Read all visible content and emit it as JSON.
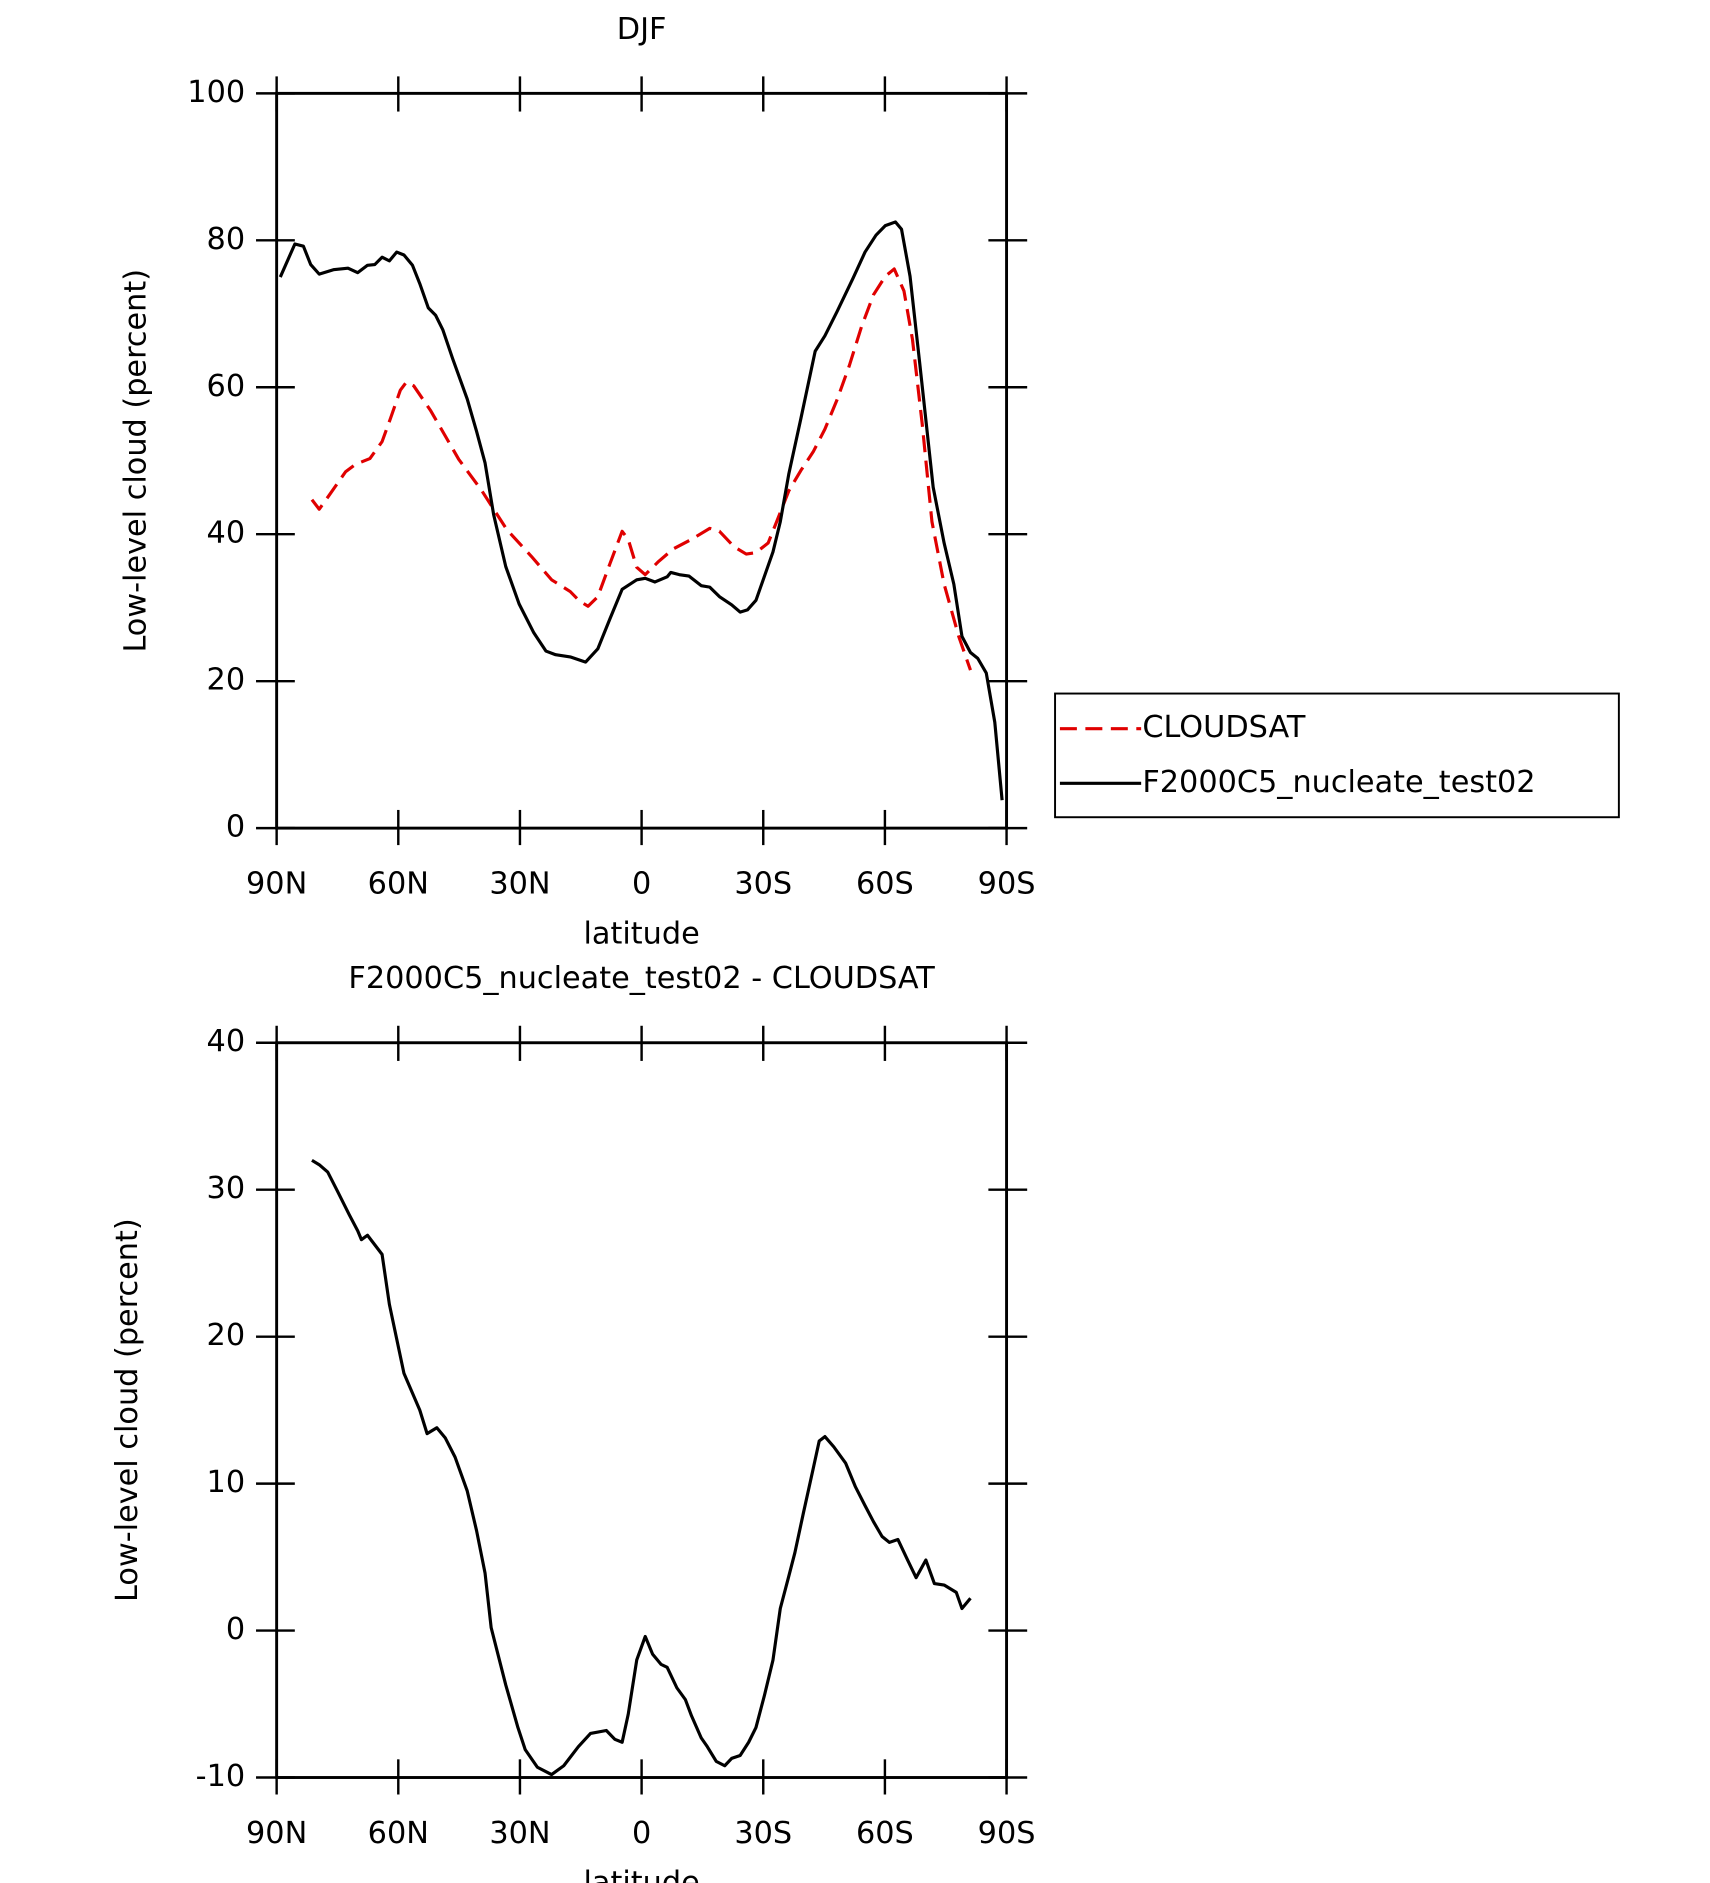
{
  "chart_data": [
    {
      "type": "line",
      "title": "DJF",
      "x_label": "latitude",
      "y_label": "Low-level cloud (percent)",
      "xlim": [
        90,
        -90
      ],
      "xticks": [
        {
          "value": 90,
          "label": "90N"
        },
        {
          "value": 60,
          "label": "60N"
        },
        {
          "value": 30,
          "label": "30N"
        },
        0,
        {
          "value": -30,
          "label": "30S"
        },
        {
          "value": -60,
          "label": "60S"
        },
        {
          "value": -90,
          "label": "90S"
        }
      ],
      "ylim": [
        0,
        100
      ],
      "yticks": [
        0,
        20,
        40,
        60,
        80,
        100
      ],
      "legend": "right",
      "series": [
        {
          "name": "CLOUDSAT",
          "color": "#e00000",
          "style": "dashed",
          "x": [
            81.3,
            79.5,
            76.8,
            73,
            70.6,
            67,
            64,
            61.9,
            59.5,
            58,
            56.2,
            52,
            45.1,
            39.5,
            33.2,
            27.2,
            22.2,
            17.6,
            15.3,
            13.2,
            10.8,
            7.8,
            4.8,
            3.3,
            1.2,
            -0.9,
            -4.2,
            -7.8,
            -12.3,
            -16.8,
            -19.2,
            -22.8,
            -25.8,
            -28.2,
            -31.2,
            -33.3,
            -36.3,
            -39.3,
            -42.3,
            -45.2,
            -48.2,
            -51.2,
            -54.2,
            -57.2,
            -60.1,
            -62.3,
            -64.7,
            -66.8,
            -69.2,
            -71.6,
            -74.6,
            -78.2,
            -81.1
          ],
          "values": [
            44.7,
            43.4,
            45.5,
            48.5,
            49.5,
            50.3,
            52.6,
            55.8,
            59.6,
            60.7,
            60.2,
            56.8,
            50.2,
            46,
            40.6,
            37,
            33.8,
            32.2,
            30.9,
            30.2,
            31.5,
            36,
            40.4,
            39.3,
            35.5,
            34.5,
            36.3,
            38,
            39.3,
            40.8,
            40.4,
            38.3,
            37.3,
            37.5,
            38.8,
            41.7,
            45.9,
            48.7,
            51.2,
            54.3,
            58.3,
            62.9,
            68.2,
            72.6,
            75.1,
            76.1,
            73.1,
            66.5,
            55,
            41.7,
            33.2,
            26.1,
            21.5
          ]
        },
        {
          "name": "F2000C5_nucleate_test02",
          "color": "#000000",
          "style": "solid",
          "x": [
            89.1,
            85.5,
            83.4,
            81.6,
            79.5,
            76,
            72.4,
            70,
            67.6,
            65.8,
            64,
            62.2,
            60.4,
            58.6,
            56.5,
            54.7,
            52.6,
            50.8,
            49,
            46.6,
            43,
            40.7,
            38.6,
            36.5,
            33.5,
            30.2,
            26.6,
            23.6,
            21.2,
            17.6,
            13.8,
            10.8,
            7.8,
            4.8,
            1.2,
            -0.9,
            -3.3,
            -6.3,
            -7.2,
            -9.3,
            -11.7,
            -14.7,
            -16.8,
            -19.2,
            -22.2,
            -24.3,
            -26.1,
            -28.2,
            -30.3,
            -32.4,
            -34.2,
            -36.3,
            -39.3,
            -42.8,
            -45.2,
            -48.2,
            -52.1,
            -55.1,
            -57.8,
            -60.1,
            -62.6,
            -64.1,
            -66.2,
            -68.6,
            -71.9,
            -74.6,
            -77,
            -79,
            -81.1,
            -82.9,
            -85,
            -87.1,
            -88.9
          ],
          "values": [
            75,
            79.5,
            79.2,
            76.7,
            75.4,
            76,
            76.2,
            75.6,
            76.6,
            76.7,
            77.7,
            77.2,
            78.4,
            78,
            76.6,
            74.1,
            70.8,
            69.8,
            67.8,
            63.9,
            58.4,
            54,
            49.7,
            42.7,
            35.6,
            30.5,
            26.6,
            24.1,
            23.6,
            23.3,
            22.6,
            24.4,
            28.5,
            32.5,
            33.8,
            34,
            33.5,
            34.2,
            34.8,
            34.5,
            34.3,
            33,
            32.8,
            31.5,
            30.4,
            29.4,
            29.7,
            31,
            34.3,
            37.6,
            41.7,
            48.2,
            55.8,
            64.9,
            67,
            70.3,
            74.8,
            78.4,
            80.7,
            82,
            82.5,
            81.5,
            75.1,
            63.2,
            46.4,
            38.8,
            33.2,
            26.1,
            23.9,
            23.1,
            21.1,
            14.4,
            3.8
          ]
        }
      ]
    },
    {
      "type": "line",
      "title": "F2000C5_nucleate_test02 - CLOUDSAT",
      "x_label": "latitude",
      "y_label": "Low-level cloud (percent)",
      "xlim": [
        90,
        -90
      ],
      "xticks": [
        {
          "value": 90,
          "label": "90N"
        },
        {
          "value": 60,
          "label": "60N"
        },
        {
          "value": 30,
          "label": "30N"
        },
        0,
        {
          "value": -30,
          "label": "30S"
        },
        {
          "value": -60,
          "label": "60S"
        },
        {
          "value": -90,
          "label": "90S"
        }
      ],
      "ylim": [
        -10,
        40
      ],
      "yticks": [
        -10,
        0,
        10,
        20,
        30,
        40
      ],
      "series": [
        {
          "color": "#000000",
          "style": "solid",
          "x": [
            81.3,
            79.5,
            77.4,
            75,
            72.1,
            70,
            69.1,
            67.6,
            64,
            62.2,
            58.6,
            54.7,
            52.9,
            50.5,
            48.4,
            46,
            43,
            40.7,
            38.6,
            37.1,
            33.5,
            30.5,
            28.7,
            25.7,
            22.2,
            19.2,
            15.6,
            12.6,
            8.7,
            6.6,
            4.8,
            3.3,
            1.2,
            -0.9,
            -2.7,
            -4.8,
            -6.3,
            -8.7,
            -10.8,
            -12.3,
            -14.7,
            -16.2,
            -18.4,
            -20.5,
            -22.2,
            -24.3,
            -26.4,
            -28.2,
            -30.3,
            -32.4,
            -34.2,
            -36.3,
            -37.8,
            -39.9,
            -42.3,
            -43.8,
            -45.2,
            -47.4,
            -50.3,
            -52.7,
            -55.1,
            -57.2,
            -59.3,
            -61.1,
            -63.2,
            -65.6,
            -67.7,
            -70.1,
            -72.2,
            -74.6,
            -77.6,
            -79,
            -81.1
          ],
          "values": [
            32,
            31.7,
            31.2,
            29.9,
            28.3,
            27.2,
            26.6,
            26.9,
            25.6,
            22.2,
            17.5,
            15,
            13.4,
            13.8,
            13.1,
            11.8,
            9.5,
            6.8,
            3.9,
            0.2,
            -3.7,
            -6.6,
            -8.1,
            -9.3,
            -9.8,
            -9.2,
            -7.9,
            -7,
            -6.8,
            -7.4,
            -7.6,
            -5.7,
            -2,
            -0.4,
            -1.6,
            -2.3,
            -2.5,
            -3.9,
            -4.7,
            -5.8,
            -7.3,
            -7.9,
            -8.9,
            -9.2,
            -8.7,
            -8.5,
            -7.6,
            -6.6,
            -4.4,
            -2,
            1.5,
            3.7,
            5.3,
            8,
            11,
            12.9,
            13.2,
            12.5,
            11.4,
            9.8,
            8.5,
            7.4,
            6.4,
            6,
            6.2,
            4.8,
            3.6,
            4.8,
            3.2,
            3.1,
            2.6,
            1.5,
            2.2
          ]
        }
      ]
    }
  ]
}
